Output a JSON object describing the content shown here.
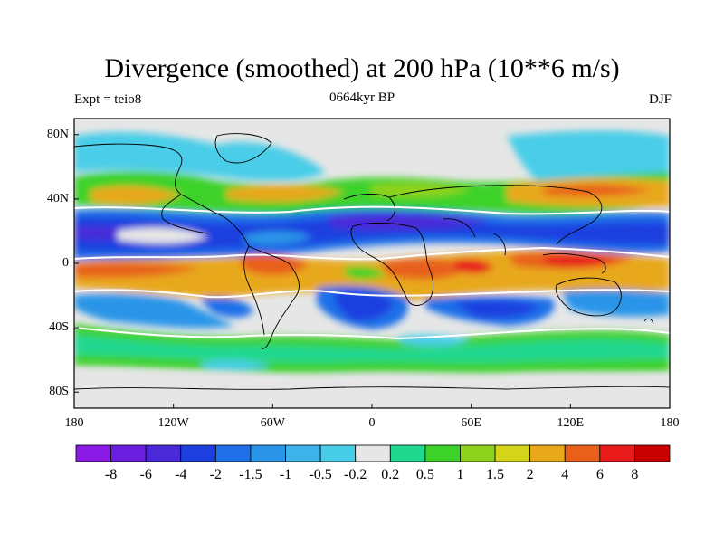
{
  "title": "Divergence (smoothed) at 200 hPa (10**6 m/s)",
  "subtitle_left": "Expt = teio8",
  "subtitle_center": "0664kyr BP",
  "subtitle_right": "DJF",
  "lat_labels": [
    "80N",
    "40N",
    "0",
    "40S",
    "80S"
  ],
  "lon_labels": [
    "180",
    "120W",
    "60W",
    "0",
    "60E",
    "120E",
    "180"
  ],
  "colorbar": {
    "labels": [
      "-8",
      "-6",
      "-4",
      "-2",
      "-1.5",
      "-1",
      "-0.5",
      "-0.2",
      "0.2",
      "0.5",
      "1",
      "1.5",
      "2",
      "4",
      "6",
      "8"
    ],
    "colors": [
      "#8a1ae6",
      "#6a1fe0",
      "#4a2ad8",
      "#1e3fe0",
      "#1e6fe8",
      "#2a95e8",
      "#3cb4ea",
      "#48cde8",
      "#e6e6e6",
      "#20d890",
      "#3cd22a",
      "#8ed21e",
      "#d4d41a",
      "#e8a81a",
      "#e8601a",
      "#e81a1a",
      "#c80000"
    ]
  }
}
